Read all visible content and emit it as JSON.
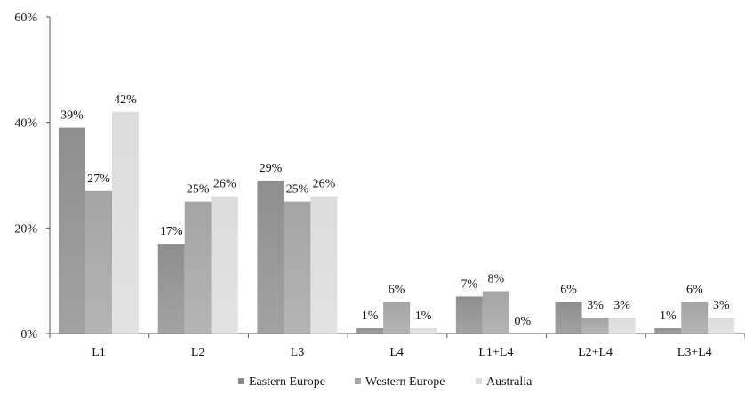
{
  "chart_data": {
    "type": "bar",
    "title": "",
    "xlabel": "",
    "ylabel": "",
    "ylim": [
      0,
      60
    ],
    "yticks": [
      0,
      20,
      40,
      60
    ],
    "ytick_labels": [
      "0%",
      "20%",
      "40%",
      "60%"
    ],
    "grid": false,
    "legend_position": "bottom",
    "categories": [
      "L1",
      "L2",
      "L3",
      "L4",
      "L1+L4",
      "L2+L4",
      "L3+L4"
    ],
    "series": [
      {
        "name": "Eastern Europe",
        "values": [
          39,
          17,
          29,
          1,
          7,
          6,
          1
        ],
        "labels": [
          "39%",
          "17%",
          "29%",
          "1%",
          "7%",
          "6%",
          "1%"
        ],
        "color": "#8e8e8e"
      },
      {
        "name": "Western Europe",
        "values": [
          27,
          25,
          25,
          6,
          8,
          3,
          6
        ],
        "labels": [
          "27%",
          "25%",
          "25%",
          "6%",
          "8%",
          "3%",
          "6%"
        ],
        "color": "#a4a4a4"
      },
      {
        "name": "Australia",
        "values": [
          42,
          26,
          26,
          1,
          0,
          3,
          3
        ],
        "labels": [
          "42%",
          "26%",
          "26%",
          "1%",
          "0%",
          "3%",
          "3%"
        ],
        "color": "#dcdcdc"
      }
    ]
  }
}
